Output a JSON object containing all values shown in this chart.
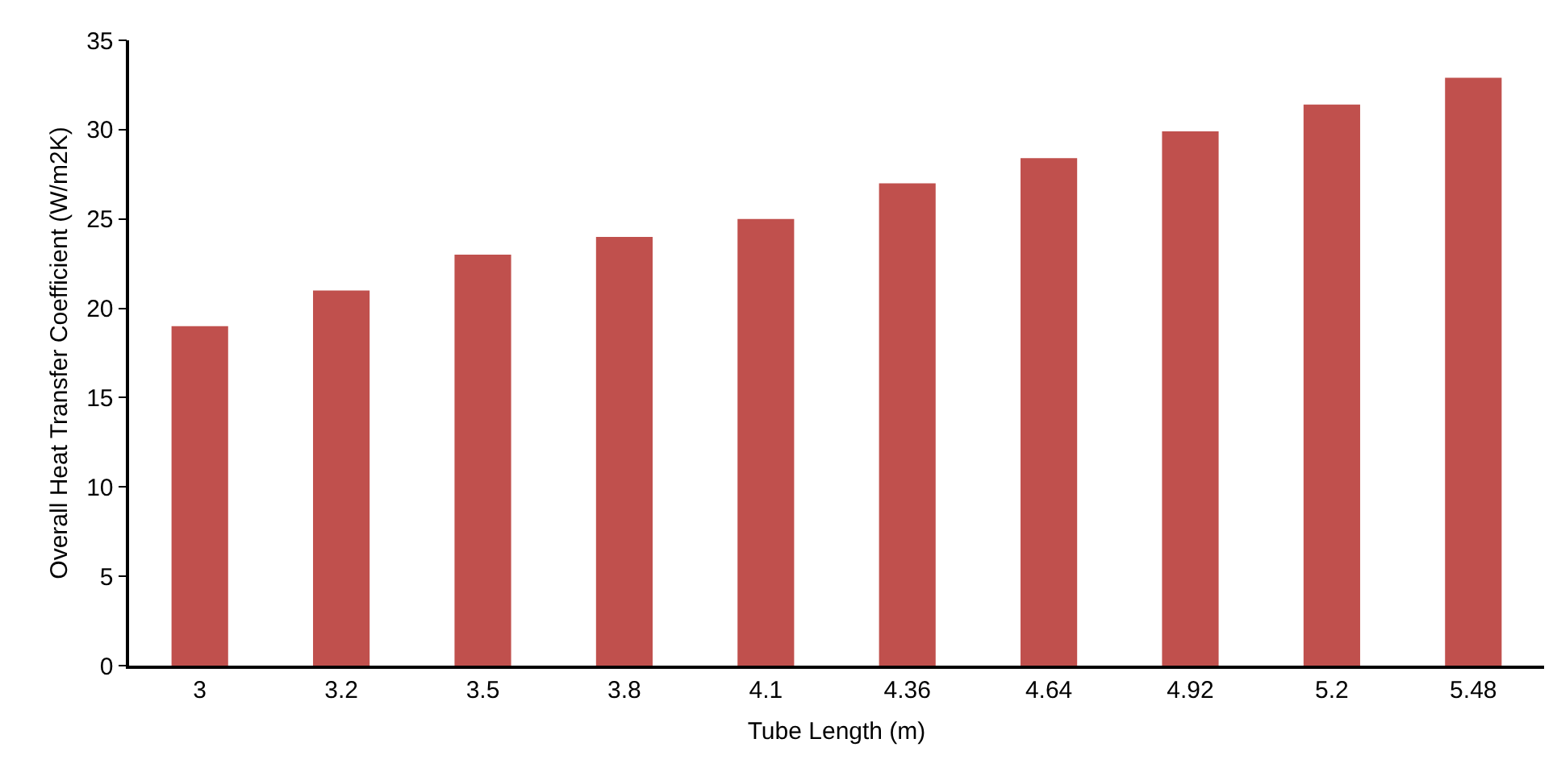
{
  "chart_data": {
    "type": "bar",
    "xlabel": "Tube Length (m)",
    "ylabel": "Overall Heat Transfer Coefficient (W/m2K)",
    "categories": [
      "3",
      "3.2",
      "3.5",
      "3.8",
      "4.1",
      "4.36",
      "4.64",
      "4.92",
      "5.2",
      "5.48"
    ],
    "values": [
      19,
      21,
      23,
      24,
      25,
      27,
      28.4,
      29.9,
      31.4,
      32.9
    ],
    "color": "#c0504d",
    "ylim": [
      0,
      35
    ],
    "yticks": [
      0,
      5,
      10,
      15,
      20,
      25,
      30,
      35
    ],
    "grid": false
  }
}
